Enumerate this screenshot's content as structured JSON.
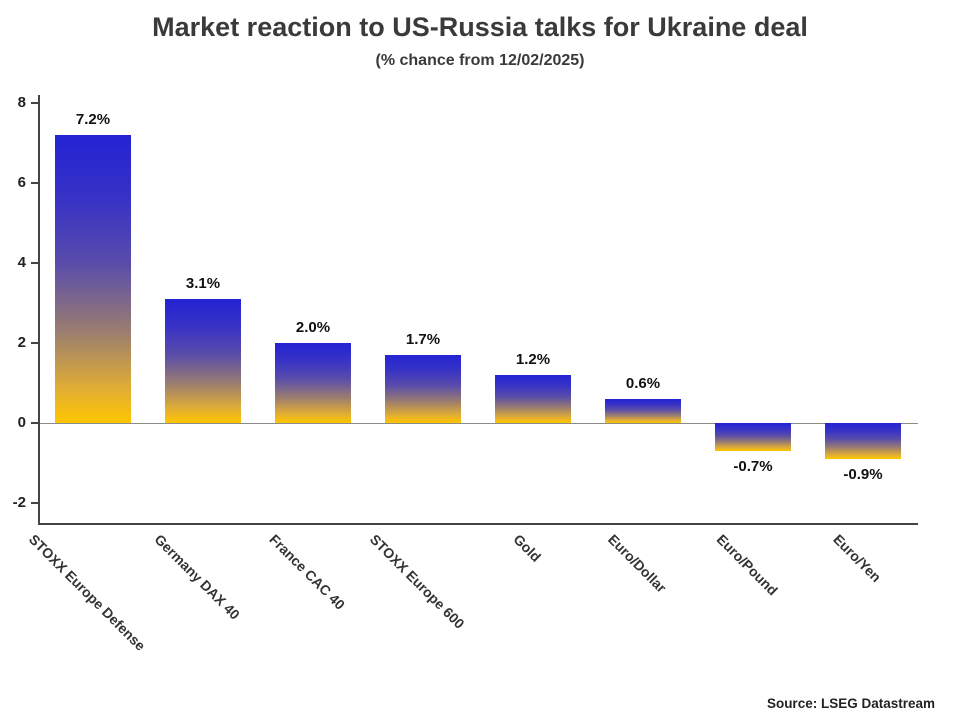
{
  "title": "Market reaction to US-Russia talks for Ukraine deal",
  "subtitle": "(% chance from 12/02/2025)",
  "source": "Source: LSEG Datastream",
  "colors": {
    "bar_top": "#2323d3",
    "bar_bottom": "#ffc600",
    "axis": "#444444",
    "zero_line": "#8a8a8a",
    "title_text": "#3a3a3a"
  },
  "chart_data": {
    "type": "bar",
    "title": "Market reaction to US-Russia talks for Ukraine deal",
    "subtitle": "(% chance from 12/02/2025)",
    "categories": [
      "STOXX Europe Defense",
      "Germany DAX 40",
      "France CAC 40",
      "STOXX Europe 600",
      "Gold",
      "Euro/Dollar",
      "Euro/Pound",
      "Euro/Yen"
    ],
    "values": [
      7.2,
      3.1,
      2.0,
      1.7,
      1.2,
      0.6,
      -0.7,
      -0.9
    ],
    "value_labels": [
      "7.2%",
      "3.1%",
      "2.0%",
      "1.7%",
      "1.2%",
      "0.6%",
      "-0.7%",
      "-0.9%"
    ],
    "xlabel": "",
    "ylabel": "",
    "ylim": [
      -2,
      8
    ],
    "yticks": [
      -2,
      0,
      2,
      4,
      6,
      8
    ],
    "grid": false,
    "legend": false,
    "annotation_source": "Source: LSEG Datastream"
  }
}
